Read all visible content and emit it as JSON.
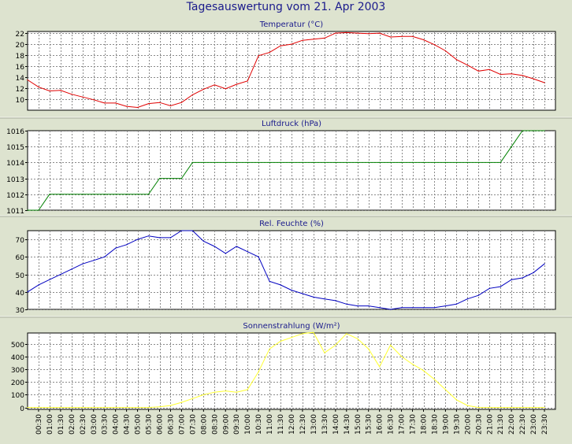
{
  "window": {
    "title": "Tagesauswertung vom 21. Apr 2003"
  },
  "colors": {
    "background": "#dde3cf",
    "plot_background": "#ffffff",
    "title_color": "#1a1a8c",
    "grid": "#8a8a8a"
  },
  "chart_data": [
    {
      "type": "line",
      "title": "Temperatur (°C)",
      "color": "#e00000",
      "ylim": [
        8,
        22.3
      ],
      "yticks": [
        10,
        12,
        14,
        16,
        18,
        20,
        22
      ],
      "x": [
        "00:00",
        "00:30",
        "01:00",
        "01:30",
        "02:00",
        "02:30",
        "03:00",
        "03:30",
        "04:00",
        "04:30",
        "05:00",
        "05:30",
        "06:00",
        "06:30",
        "07:00",
        "07:30",
        "08:00",
        "08:30",
        "09:00",
        "09:30",
        "10:00",
        "10:30",
        "11:00",
        "11:30",
        "12:00",
        "12:30",
        "13:00",
        "13:30",
        "14:00",
        "14:30",
        "15:00",
        "15:30",
        "16:00",
        "16:30",
        "17:00",
        "17:30",
        "18:00",
        "18:30",
        "19:00",
        "19:30",
        "20:00",
        "20:30",
        "21:00",
        "21:30",
        "22:00",
        "22:30",
        "23:00",
        "23:30"
      ],
      "values": [
        13.5,
        12.2,
        11.5,
        11.6,
        10.9,
        10.4,
        9.9,
        9.3,
        9.3,
        8.7,
        8.5,
        9.2,
        9.4,
        8.8,
        9.4,
        10.8,
        11.8,
        12.6,
        11.9,
        12.7,
        13.3,
        17.9,
        18.5,
        19.7,
        20.0,
        20.7,
        20.9,
        21.1,
        22.0,
        22.1,
        22.0,
        21.9,
        22.0,
        21.3,
        21.4,
        21.4,
        20.8,
        19.9,
        18.8,
        17.2,
        16.2,
        15.1,
        15.4,
        14.5,
        14.6,
        14.3,
        13.7,
        13.0
      ],
      "grid": true
    },
    {
      "type": "line",
      "title": "Luftdruck (hPa)",
      "color": "#008000",
      "ylim": [
        1011,
        1016
      ],
      "yticks": [
        1011,
        1012,
        1013,
        1014,
        1015,
        1016
      ],
      "x": [
        "00:00",
        "00:30",
        "01:00",
        "01:30",
        "02:00",
        "02:30",
        "03:00",
        "03:30",
        "04:00",
        "04:30",
        "05:00",
        "05:30",
        "06:00",
        "06:30",
        "07:00",
        "07:30",
        "08:00",
        "08:30",
        "09:00",
        "09:30",
        "10:00",
        "10:30",
        "11:00",
        "11:30",
        "12:00",
        "12:30",
        "13:00",
        "13:30",
        "14:00",
        "14:30",
        "15:00",
        "15:30",
        "16:00",
        "16:30",
        "17:00",
        "17:30",
        "18:00",
        "18:30",
        "19:00",
        "19:30",
        "20:00",
        "20:30",
        "21:00",
        "21:30",
        "22:00",
        "22:30",
        "23:00",
        "23:30"
      ],
      "values": [
        1011,
        1011,
        1012,
        1012,
        1012,
        1012,
        1012,
        1012,
        1012,
        1012,
        1012,
        1012,
        1013,
        1013,
        1013,
        1014,
        1014,
        1014,
        1014,
        1014,
        1014,
        1014,
        1014,
        1014,
        1014,
        1014,
        1014,
        1014,
        1014,
        1014,
        1014,
        1014,
        1014,
        1014,
        1014,
        1014,
        1014,
        1014,
        1014,
        1014,
        1014,
        1014,
        1014,
        1014,
        1015,
        1016,
        1016,
        1016
      ],
      "grid": true
    },
    {
      "type": "line",
      "title": "Rel. Feuchte (%)",
      "color": "#0000c0",
      "ylim": [
        30,
        75
      ],
      "yticks": [
        30,
        40,
        50,
        60,
        70
      ],
      "x": [
        "00:00",
        "00:30",
        "01:00",
        "01:30",
        "02:00",
        "02:30",
        "03:00",
        "03:30",
        "04:00",
        "04:30",
        "05:00",
        "05:30",
        "06:00",
        "06:30",
        "07:00",
        "07:30",
        "08:00",
        "08:30",
        "09:00",
        "09:30",
        "10:00",
        "10:30",
        "11:00",
        "11:30",
        "12:00",
        "12:30",
        "13:00",
        "13:30",
        "14:00",
        "14:30",
        "15:00",
        "15:30",
        "16:00",
        "16:30",
        "17:00",
        "17:30",
        "18:00",
        "18:30",
        "19:00",
        "19:30",
        "20:00",
        "20:30",
        "21:00",
        "21:30",
        "22:00",
        "22:30",
        "23:00",
        "23:30"
      ],
      "values": [
        40,
        44,
        47,
        50,
        53,
        56,
        58,
        60,
        65,
        67,
        70,
        72,
        71,
        71,
        75,
        75,
        69,
        66,
        62,
        66,
        63,
        60,
        46,
        44,
        41,
        39,
        37,
        36,
        35,
        33,
        32,
        32,
        31,
        30,
        31,
        31,
        31,
        31,
        32,
        33,
        36,
        38,
        42,
        43,
        47,
        48,
        51,
        56
      ],
      "grid": true
    },
    {
      "type": "line",
      "title": "Sonnenstrahlung (W/m²)",
      "color": "#ffff30",
      "ylim": [
        -15,
        585
      ],
      "yticks": [
        0,
        100,
        200,
        300,
        400,
        500
      ],
      "x": [
        "00:00",
        "00:30",
        "01:00",
        "01:30",
        "02:00",
        "02:30",
        "03:00",
        "03:30",
        "04:00",
        "04:30",
        "05:00",
        "05:30",
        "06:00",
        "06:30",
        "07:00",
        "07:30",
        "08:00",
        "08:30",
        "09:00",
        "09:30",
        "10:00",
        "10:30",
        "11:00",
        "11:30",
        "12:00",
        "12:30",
        "13:00",
        "13:30",
        "14:00",
        "14:30",
        "15:00",
        "15:30",
        "16:00",
        "16:30",
        "17:00",
        "17:30",
        "18:00",
        "18:30",
        "19:00",
        "19:30",
        "20:00",
        "20:30",
        "21:00",
        "21:30",
        "22:00",
        "22:30",
        "23:00",
        "23:30"
      ],
      "values": [
        0,
        0,
        0,
        0,
        0,
        0,
        0,
        0,
        0,
        0,
        0,
        0,
        5,
        15,
        40,
        70,
        100,
        120,
        130,
        120,
        140,
        280,
        460,
        520,
        550,
        580,
        590,
        430,
        490,
        580,
        540,
        460,
        320,
        490,
        400,
        340,
        290,
        220,
        140,
        60,
        15,
        0,
        0,
        0,
        0,
        0,
        0,
        0
      ],
      "grid": true
    }
  ],
  "time_axis": {
    "labels": [
      "00:30",
      "01:00",
      "01:30",
      "02:00",
      "02:30",
      "03:00",
      "03:30",
      "04:00",
      "04:30",
      "05:00",
      "05:30",
      "06:00",
      "06:30",
      "07:00",
      "07:30",
      "08:00",
      "08:30",
      "09:00",
      "09:30",
      "10:00",
      "10:30",
      "11:00",
      "11:30",
      "12:00",
      "12:30",
      "13:00",
      "13:30",
      "14:00",
      "14:30",
      "15:00",
      "15:30",
      "16:00",
      "16:30",
      "17:00",
      "17:30",
      "18:00",
      "18:30",
      "19:00",
      "19:30",
      "20:00",
      "20:30",
      "21:00",
      "21:30",
      "22:00",
      "22:30",
      "23:00",
      "23:30"
    ]
  }
}
